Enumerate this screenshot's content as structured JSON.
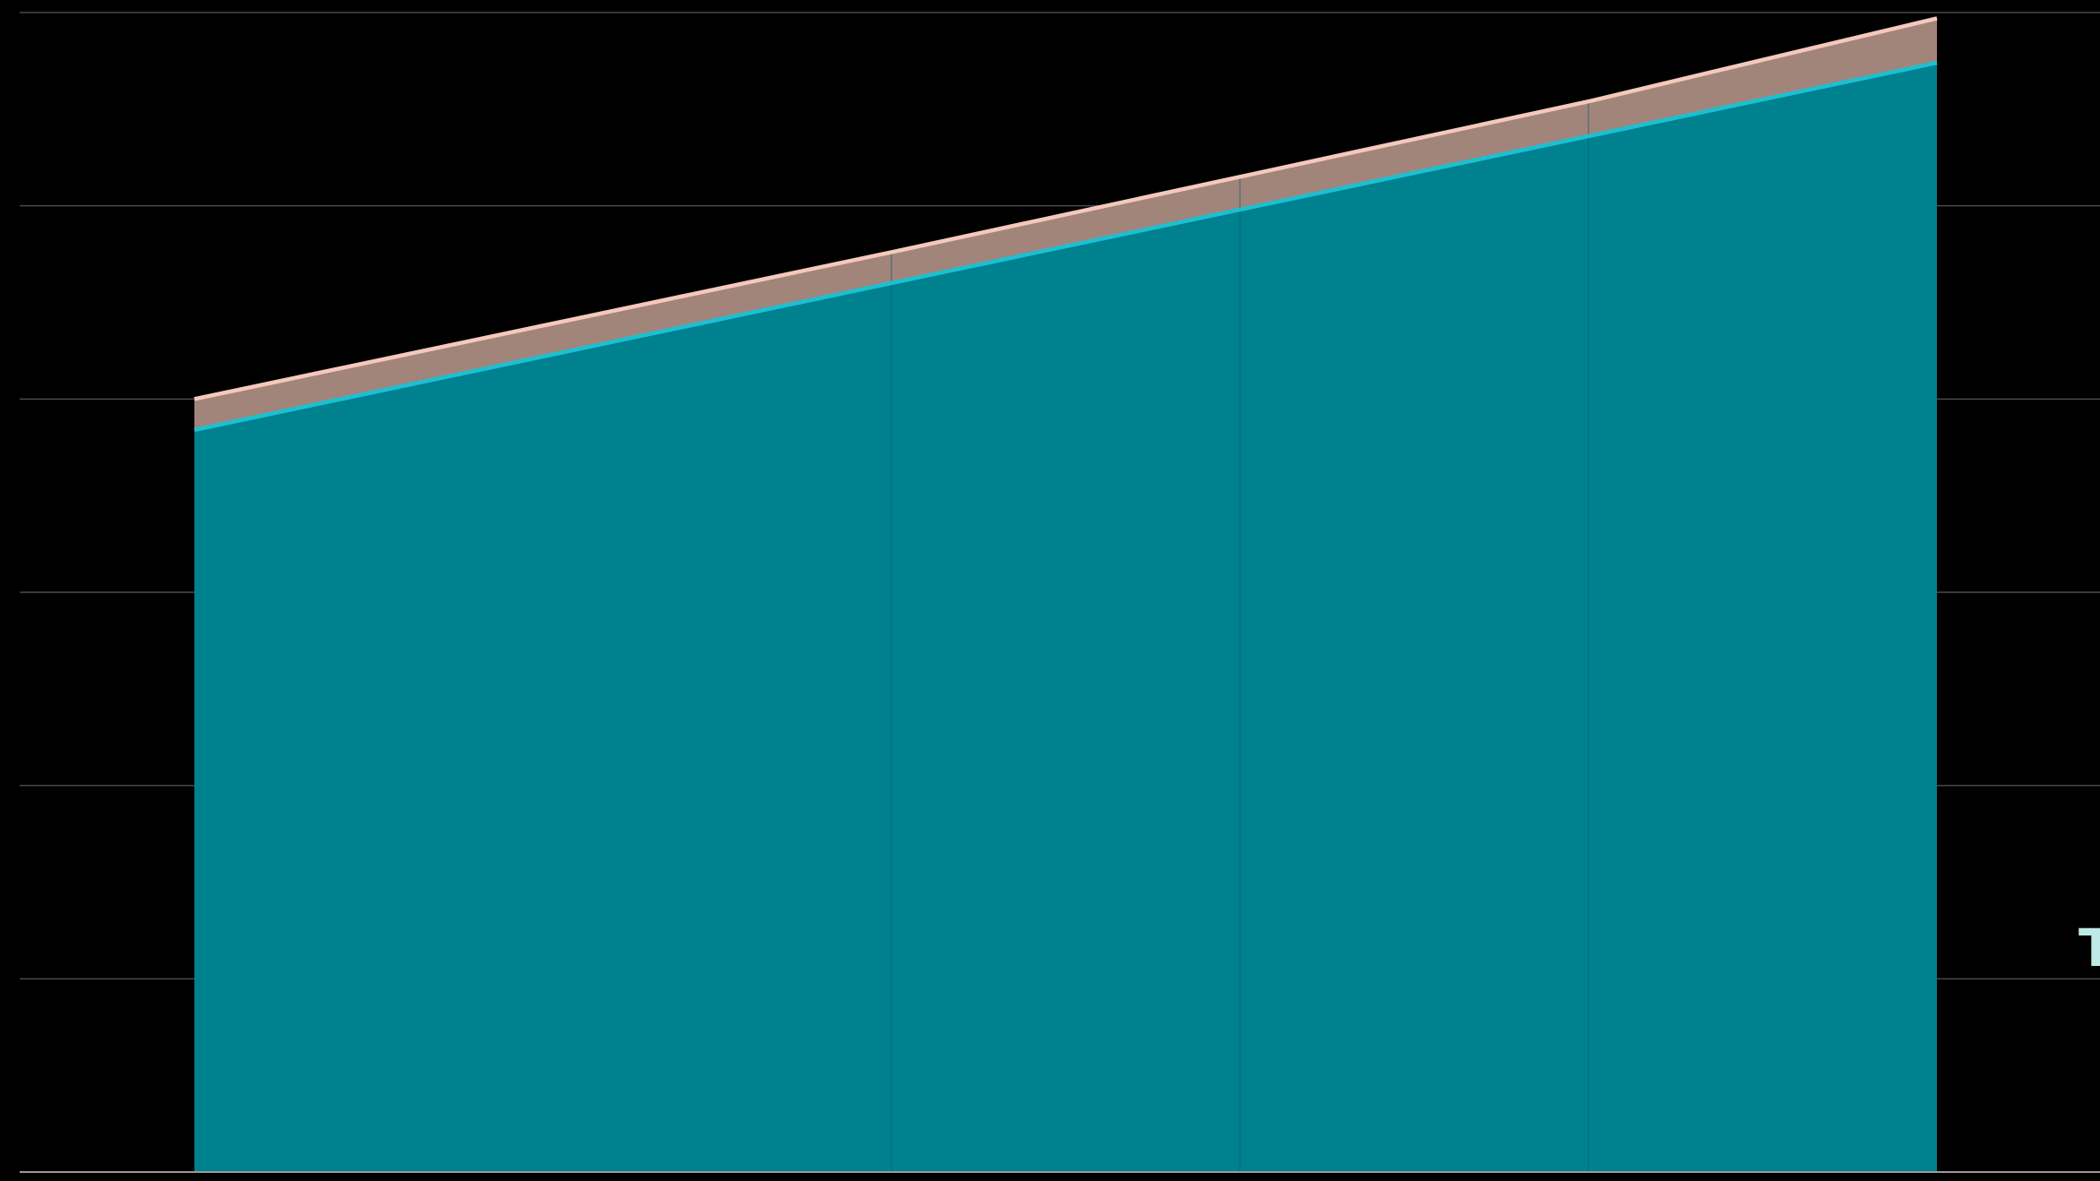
{
  "chart_data": {
    "type": "area",
    "stacked": true,
    "x": [
      0,
      2,
      3,
      4,
      5
    ],
    "ylim": [
      0,
      6
    ],
    "xlim": [
      -0.5,
      5.5
    ],
    "grid": {
      "horizontal": true,
      "vertical": true
    },
    "series": [
      {
        "values": [
          3.84,
          4.6,
          4.98,
          5.36,
          5.74
        ],
        "color": "#00818f",
        "line_color": "#1cc0d2"
      },
      {
        "values": [
          0.16,
          0.16,
          0.17,
          0.18,
          0.23
        ],
        "color": "#a2857a",
        "line_color": "#f4c9bb"
      }
    ],
    "annotations": [
      {
        "text": "T",
        "color": "#bfe9e6"
      }
    ]
  }
}
